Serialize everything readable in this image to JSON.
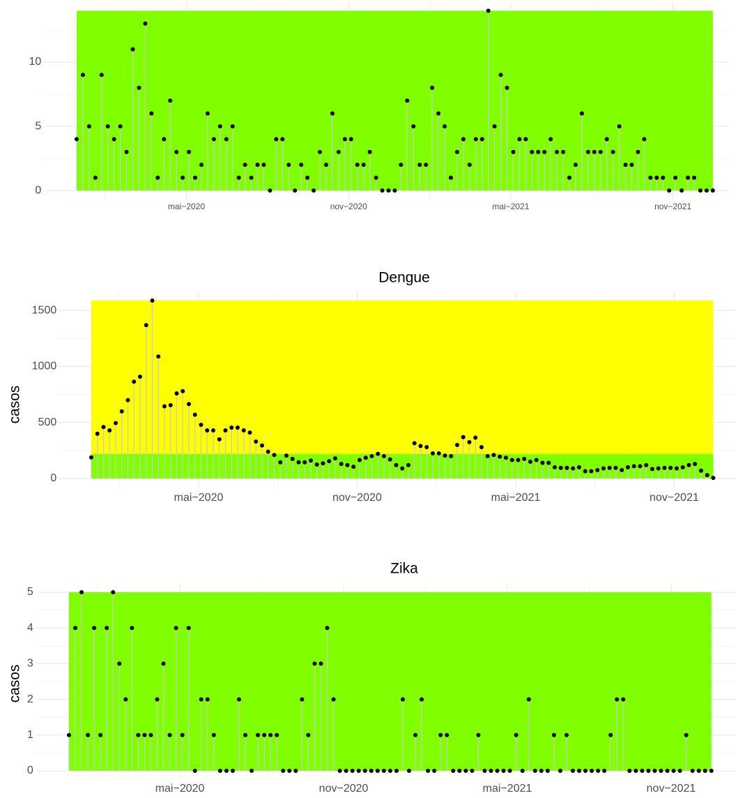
{
  "chart_data": [
    {
      "type": "lollipop",
      "values": [
        4,
        9,
        5,
        1,
        9,
        5,
        4,
        5,
        3,
        11,
        8,
        13,
        6,
        1,
        4,
        7,
        3,
        1,
        3,
        1,
        2,
        6,
        4,
        5,
        4,
        5,
        1,
        2,
        1,
        2,
        2,
        0,
        4,
        4,
        2,
        0,
        2,
        1,
        0,
        3,
        2,
        6,
        3,
        4,
        4,
        2,
        2,
        3,
        1,
        0,
        0,
        0,
        2,
        7,
        5,
        2,
        2,
        8,
        6,
        5,
        1,
        3,
        4,
        2,
        4,
        4,
        14,
        5,
        9,
        8,
        3,
        4,
        4,
        3,
        3,
        3,
        4,
        3,
        3,
        1,
        2,
        6,
        3,
        3,
        3,
        4,
        3,
        5,
        2,
        2,
        3,
        4,
        1,
        1,
        1,
        0,
        1,
        0,
        1,
        1,
        0,
        0,
        0
      ],
      "bands": [
        {
          "from": 0,
          "to": 14,
          "color": "#7fff00"
        }
      ],
      "xlim": [
        -5,
        103
      ],
      "xticks": [
        {
          "value": 17.6,
          "label": "mai−2020"
        },
        {
          "value": 43.6,
          "label": "nov−2020"
        },
        {
          "value": 69.6,
          "label": "mai−2021"
        },
        {
          "value": 95.6,
          "label": "nov−2021"
        }
      ],
      "ylim": [
        -0.7,
        14.7
      ],
      "yticks": [
        0,
        5,
        10
      ],
      "grid": true,
      "color": "#000000",
      "stem_color": "#c8c8c8"
    },
    {
      "type": "lollipop",
      "title": "Dengue",
      "ylabel": "casos",
      "values": [
        188,
        400,
        460,
        430,
        495,
        600,
        700,
        865,
        910,
        1370,
        1590,
        1090,
        645,
        655,
        760,
        780,
        665,
        570,
        480,
        430,
        430,
        350,
        430,
        455,
        455,
        430,
        410,
        330,
        295,
        240,
        210,
        145,
        205,
        175,
        145,
        145,
        160,
        125,
        135,
        155,
        180,
        130,
        120,
        105,
        165,
        185,
        200,
        220,
        200,
        170,
        120,
        90,
        120,
        315,
        290,
        280,
        225,
        225,
        205,
        200,
        300,
        370,
        325,
        365,
        280,
        200,
        210,
        195,
        185,
        165,
        165,
        175,
        150,
        165,
        140,
        140,
        100,
        95,
        95,
        90,
        100,
        65,
        65,
        75,
        90,
        95,
        95,
        75,
        100,
        110,
        110,
        120,
        85,
        90,
        95,
        95,
        90,
        100,
        120,
        130,
        70,
        30,
        5
      ],
      "bands": [
        {
          "from": 0,
          "to": 220,
          "color": "#7fff00"
        },
        {
          "from": 220,
          "to": 1590,
          "color": "#ffff00"
        }
      ],
      "xlim": [
        -5,
        103
      ],
      "xticks": [
        {
          "value": 17.6,
          "label": "mai−2020"
        },
        {
          "value": 43.6,
          "label": "nov−2020"
        },
        {
          "value": 69.6,
          "label": "mai−2021"
        },
        {
          "value": 95.6,
          "label": "nov−2021"
        }
      ],
      "ylim": [
        -80,
        1670
      ],
      "yticks": [
        0,
        500,
        1000,
        1500
      ],
      "grid": true,
      "color": "#000000",
      "stem_color": "#c8c8c8"
    },
    {
      "type": "lollipop",
      "title": "Zika",
      "ylabel": "casos",
      "values": [
        1,
        4,
        5,
        1,
        4,
        1,
        4,
        5,
        3,
        2,
        4,
        1,
        1,
        1,
        2,
        3,
        1,
        4,
        1,
        4,
        0,
        2,
        2,
        1,
        0,
        0,
        0,
        2,
        1,
        0,
        1,
        1,
        1,
        1,
        0,
        0,
        0,
        2,
        1,
        3,
        3,
        4,
        2,
        0,
        0,
        0,
        0,
        0,
        0,
        0,
        0,
        0,
        0,
        2,
        0,
        1,
        2,
        0,
        0,
        1,
        1,
        0,
        0,
        0,
        0,
        1,
        0,
        0,
        0,
        0,
        0,
        1,
        0,
        2,
        0,
        0,
        0,
        1,
        0,
        1,
        0,
        0,
        0,
        0,
        0,
        0,
        1,
        2,
        2,
        0,
        0,
        0,
        0,
        0,
        0,
        0,
        0,
        0,
        1,
        0,
        0,
        0,
        0
      ],
      "bands": [
        {
          "from": 0,
          "to": 5,
          "color": "#7fff00"
        }
      ],
      "xlim": [
        -5,
        103
      ],
      "xticks": [
        {
          "value": 17.6,
          "label": "mai−2020"
        },
        {
          "value": 43.6,
          "label": "nov−2020"
        },
        {
          "value": 69.6,
          "label": "mai−2021"
        },
        {
          "value": 95.6,
          "label": "nov−2021"
        }
      ],
      "ylim": [
        -0.25,
        5.25
      ],
      "yticks": [
        0,
        1,
        2,
        3,
        4,
        5
      ],
      "grid": true,
      "color": "#000000",
      "stem_color": "#c8c8c8"
    }
  ]
}
